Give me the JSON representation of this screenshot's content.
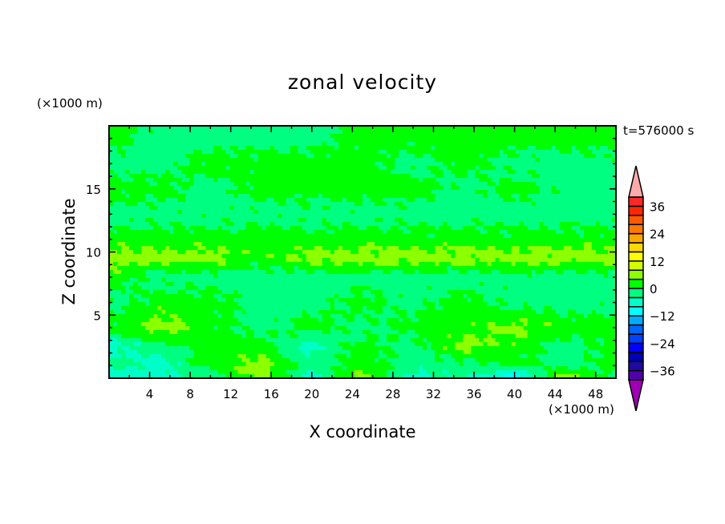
{
  "chart_data": {
    "type": "heatmap",
    "title": "zonal velocity",
    "xlabel": "X coordinate",
    "ylabel": "Z coordinate",
    "x_unit": "(×1000 m)",
    "y_unit": "(×1000 m)",
    "annotation": "t=576000 s",
    "xlim": [
      0,
      50
    ],
    "ylim": [
      0,
      20
    ],
    "x_ticks": [
      4,
      8,
      12,
      16,
      20,
      24,
      28,
      32,
      36,
      40,
      44,
      48
    ],
    "y_ticks": [
      5,
      10,
      15
    ],
    "grid_x": [
      0,
      5,
      10,
      15,
      20,
      25,
      30,
      35,
      40,
      45,
      50
    ],
    "grid_z": [
      19,
      17,
      15,
      13,
      11,
      9.5,
      8,
      6,
      4,
      2.5,
      1,
      0.2
    ],
    "values_approx": [
      [
        2,
        -2,
        -2,
        -2,
        -2,
        2,
        2,
        2,
        2,
        2,
        2
      ],
      [
        -2,
        -2,
        2,
        2,
        2,
        2,
        -2,
        2,
        -2,
        -2,
        -2
      ],
      [
        2,
        2,
        -2,
        2,
        2,
        2,
        2,
        -2,
        2,
        -2,
        -2
      ],
      [
        -2,
        -2,
        -2,
        -2,
        -2,
        -2,
        -2,
        -2,
        -2,
        -2,
        -2
      ],
      [
        2,
        2,
        2,
        2,
        2,
        2,
        2,
        2,
        2,
        2,
        2
      ],
      [
        6,
        6,
        6,
        2,
        6,
        6,
        6,
        6,
        6,
        6,
        6
      ],
      [
        2,
        -2,
        -2,
        -2,
        -2,
        -2,
        -2,
        -2,
        -2,
        -2,
        -2
      ],
      [
        -2,
        2,
        2,
        -2,
        -2,
        2,
        -2,
        2,
        -2,
        -2,
        -2
      ],
      [
        2,
        6,
        2,
        -2,
        2,
        -2,
        2,
        2,
        6,
        2,
        2
      ],
      [
        -6,
        -2,
        2,
        2,
        -6,
        2,
        -2,
        6,
        2,
        -2,
        2
      ],
      [
        -2,
        -6,
        2,
        6,
        -2,
        2,
        -2,
        -2,
        2,
        -2,
        2
      ],
      [
        -6,
        -6,
        -2,
        6,
        -6,
        6,
        -6,
        -2,
        -10,
        6,
        -2
      ]
    ],
    "colorbar": {
      "levels": [
        -40,
        -36,
        -32,
        -28,
        -24,
        -20,
        -16,
        -12,
        -8,
        -4,
        0,
        4,
        8,
        12,
        16,
        20,
        24,
        28,
        32,
        36,
        40
      ],
      "tick_labels": [
        "36",
        "24",
        "12",
        "0",
        "−12",
        "−24",
        "−36"
      ],
      "tick_values": [
        36,
        24,
        12,
        0,
        -12,
        -24,
        -36
      ],
      "colors_low_to_high": [
        "#5000aa",
        "#1e0aa0",
        "#0000b4",
        "#0000ff",
        "#0040ff",
        "#0064ff",
        "#00aaff",
        "#00ffff",
        "#00ffc8",
        "#00ff80",
        "#00ff00",
        "#8cff00",
        "#d2ff00",
        "#ffff00",
        "#ffd700",
        "#ffa500",
        "#ff7800",
        "#ff5a00",
        "#ff2800",
        "#ff2828"
      ],
      "under_color": "#a000b4",
      "over_color": "#ffaaaa"
    }
  }
}
